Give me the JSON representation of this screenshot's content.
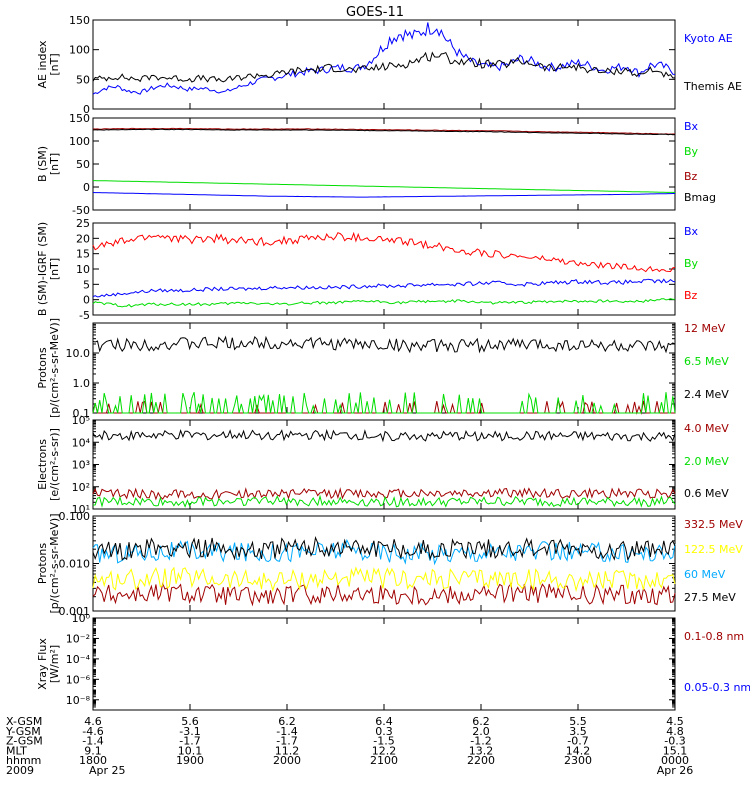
{
  "title": "GOES-11",
  "colors": {
    "black": "#000000",
    "blue": "#0000ff",
    "red": "#ff0000",
    "dark_red": "#a00000",
    "green": "#00dd00",
    "yellow": "#ffff00",
    "cyan": "#00aaff"
  },
  "chart_data": [
    {
      "id": "ae",
      "type": "line",
      "ylabel": [
        "AE index",
        "[nT]"
      ],
      "ylim": [
        0,
        150
      ],
      "yscale": "linear",
      "yticks": [
        0,
        50,
        100,
        150
      ],
      "ytick_labels": [
        "0",
        "50",
        "100",
        "150"
      ],
      "x": "hours 18:00-24:00 UT",
      "series": [
        {
          "name": "Kyoto AE",
          "color": "blue",
          "values": [
            25,
            35,
            38,
            30,
            28,
            35,
            40,
            38,
            33,
            35,
            33,
            28,
            35,
            42,
            48,
            52,
            56,
            60,
            63,
            65,
            68,
            70,
            68,
            75,
            95,
            118,
            128,
            122,
            135,
            140,
            110,
            90,
            78,
            72,
            70,
            75,
            85,
            80,
            72,
            70,
            75,
            78,
            72,
            65,
            70,
            72,
            60,
            75,
            72,
            62
          ]
        },
        {
          "name": "Themis AE",
          "color": "black",
          "values": [
            50,
            52,
            55,
            52,
            50,
            55,
            53,
            52,
            50,
            52,
            50,
            48,
            52,
            55,
            58,
            56,
            62,
            64,
            66,
            67,
            70,
            68,
            65,
            67,
            70,
            72,
            75,
            80,
            88,
            92,
            85,
            80,
            78,
            76,
            74,
            76,
            80,
            78,
            70,
            68,
            72,
            70,
            66,
            62,
            64,
            66,
            55,
            68,
            60,
            48
          ]
        }
      ]
    },
    {
      "id": "bsm",
      "type": "line",
      "ylabel": [
        "B (SM)",
        "[nT]"
      ],
      "ylim": [
        -50,
        150
      ],
      "yscale": "linear",
      "yticks": [
        -50,
        0,
        50,
        100,
        150
      ],
      "ytick_labels": [
        "-50",
        "0",
        "50",
        "100",
        "150"
      ],
      "series": [
        {
          "name": "Bx",
          "color": "blue",
          "values": [
            -12,
            -14,
            -16,
            -18,
            -20,
            -21,
            -22,
            -21,
            -20,
            -19,
            -18,
            -17,
            -16,
            -14
          ]
        },
        {
          "name": "By",
          "color": "green",
          "values": [
            14,
            12,
            10,
            8,
            6,
            4,
            2,
            0,
            -2,
            -4,
            -6,
            -8,
            -10,
            -12
          ]
        },
        {
          "name": "Bz",
          "color": "dark_red",
          "values": [
            126,
            127,
            127,
            126,
            126,
            126,
            125,
            124,
            123,
            122,
            120,
            119,
            117,
            115
          ]
        },
        {
          "name": "Bmag",
          "color": "black",
          "values": [
            124,
            125,
            125,
            124,
            124,
            124,
            123,
            122,
            121,
            120,
            118,
            117,
            115,
            114
          ]
        }
      ]
    },
    {
      "id": "bigrf",
      "type": "line",
      "ylabel": [
        "B (SM)-IGRF (SM)",
        "[nT]"
      ],
      "ylim": [
        -5,
        25
      ],
      "yscale": "linear",
      "yticks": [
        -5,
        0,
        5,
        10,
        15,
        20,
        25
      ],
      "ytick_labels": [
        "-5",
        "0",
        "5",
        "10",
        "15",
        "20",
        "25"
      ],
      "series": [
        {
          "name": "Bx",
          "color": "blue",
          "values": [
            1,
            2,
            3,
            3,
            3.5,
            3.5,
            4,
            4,
            4,
            4.5,
            4.5,
            5,
            5,
            5.5,
            5,
            5.5,
            6,
            5.5,
            6,
            6
          ]
        },
        {
          "name": "By",
          "color": "green",
          "values": [
            -1,
            -2,
            -1.5,
            -1.5,
            -1.5,
            -1,
            -1.5,
            -1,
            -1,
            -0.5,
            -1,
            -0.5,
            -0.5,
            -1,
            -1,
            -0.5,
            -0.5,
            -0.5,
            -0.5,
            0.5
          ]
        },
        {
          "name": "Bz",
          "color": "red",
          "values": [
            17,
            19,
            21,
            19.5,
            20,
            19,
            19,
            20,
            20.5,
            20,
            19,
            18,
            16,
            15,
            14,
            13,
            11.5,
            11,
            10,
            10
          ]
        }
      ]
    },
    {
      "id": "protons_high",
      "type": "line",
      "ylabel": [
        "Protons",
        "[p/(cm²-s-sr-MeV)]"
      ],
      "ylim": [
        0.1,
        100
      ],
      "yscale": "log",
      "yticks": [
        0.1,
        1,
        10
      ],
      "ytick_labels": [
        "0.1",
        "1.0",
        "10.0"
      ],
      "series": [
        {
          "name": "12 MeV",
          "color": "dark_red",
          "values": [
            0.1,
            0.1,
            0.1,
            0.1,
            0.1,
            0.1,
            0.1,
            0.1
          ]
        },
        {
          "name": "6.5 MeV",
          "color": "green",
          "values": [
            0.1,
            0.1,
            0.1,
            0.1,
            0.1,
            0.1,
            0.1,
            0.1
          ]
        },
        {
          "name": "2.4 MeV",
          "color": "black",
          "values": [
            18,
            20,
            22,
            20,
            17,
            19,
            18,
            14
          ]
        }
      ]
    },
    {
      "id": "electrons",
      "type": "line",
      "ylabel": [
        "Electrons",
        "[e/(cm²-s-sr)]"
      ],
      "ylim": [
        10,
        100000
      ],
      "yscale": "log",
      "yticks": [
        10,
        100,
        1000,
        10000,
        100000
      ],
      "ytick_labels": [
        "10¹",
        "10²",
        "10³",
        "10⁴",
        "10⁵"
      ],
      "series": [
        {
          "name": "4.0 MeV",
          "color": "dark_red",
          "values": [
            50,
            45,
            50,
            48,
            50,
            52,
            48,
            50
          ]
        },
        {
          "name": "2.0 MeV",
          "color": "green",
          "values": [
            22,
            20,
            24,
            22,
            20,
            22,
            20,
            22
          ]
        },
        {
          "name": "0.6 MeV",
          "color": "black",
          "values": [
            20000,
            21000,
            21000,
            20000,
            19000,
            19000,
            18000,
            17000
          ]
        }
      ]
    },
    {
      "id": "protons_low",
      "type": "line",
      "ylabel": [
        "Protons",
        "[p/(cm²-s-sr-MeV)]"
      ],
      "ylim": [
        0.001,
        0.1
      ],
      "yscale": "log",
      "yticks": [
        0.001,
        0.01,
        0.1
      ],
      "ytick_labels": [
        "0.001",
        "0.010",
        "0.100"
      ],
      "series": [
        {
          "name": "332.5 MeV",
          "color": "dark_red",
          "values": [
            0.0022,
            0.0025,
            0.002,
            0.0024,
            0.0022,
            0.0025,
            0.0021,
            0.0023
          ]
        },
        {
          "name": "122.5 MeV",
          "color": "yellow",
          "values": [
            0.0045,
            0.005,
            0.0042,
            0.005,
            0.0046,
            0.0048,
            0.0044,
            0.0047
          ]
        },
        {
          "name": "60 MeV",
          "color": "cyan",
          "values": [
            0.016,
            0.018,
            0.017,
            0.019,
            0.016,
            0.018,
            0.017,
            0.016
          ]
        },
        {
          "name": "27.5 MeV",
          "color": "black",
          "values": [
            0.018,
            0.022,
            0.02,
            0.024,
            0.019,
            0.021,
            0.02,
            0.019
          ]
        }
      ]
    },
    {
      "id": "xray",
      "type": "line",
      "ylabel": [
        "Xray Flux",
        "[W/m²]"
      ],
      "ylim": [
        1e-09,
        1
      ],
      "yscale": "log",
      "yticks": [
        1,
        0.01,
        0.0001,
        1e-06,
        1e-08
      ],
      "ytick_labels": [
        "10⁰",
        "10⁻²",
        "10⁻⁴",
        "10⁻⁶",
        "10⁻⁸"
      ],
      "series": [
        {
          "name": "0.1-0.8 nm",
          "color": "dark_red",
          "values": []
        },
        {
          "name": "0.05-0.3 nm",
          "color": "blue",
          "values": []
        }
      ]
    }
  ],
  "x_axis": {
    "row_labels": [
      "X-GSM",
      "Y-GSM",
      "Z-GSM",
      "MLT",
      "hhmm",
      "2009"
    ],
    "columns": [
      [
        "4.6",
        "-4.6",
        "-1.4",
        "9.1",
        "1800",
        "Apr 25"
      ],
      [
        "5.6",
        "-3.1",
        "-1.7",
        "10.1",
        "1900",
        ""
      ],
      [
        "6.2",
        "-1.4",
        "-1.7",
        "11.2",
        "2000",
        ""
      ],
      [
        "6.4",
        "0.3",
        "-1.5",
        "12.2",
        "2100",
        ""
      ],
      [
        "6.2",
        "2.0",
        "-1.2",
        "13.2",
        "2200",
        ""
      ],
      [
        "5.5",
        "3.5",
        "-0.7",
        "14.2",
        "2300",
        ""
      ],
      [
        "4.5",
        "4.8",
        "-0.3",
        "15.1",
        "0000",
        "Apr 26"
      ]
    ]
  }
}
